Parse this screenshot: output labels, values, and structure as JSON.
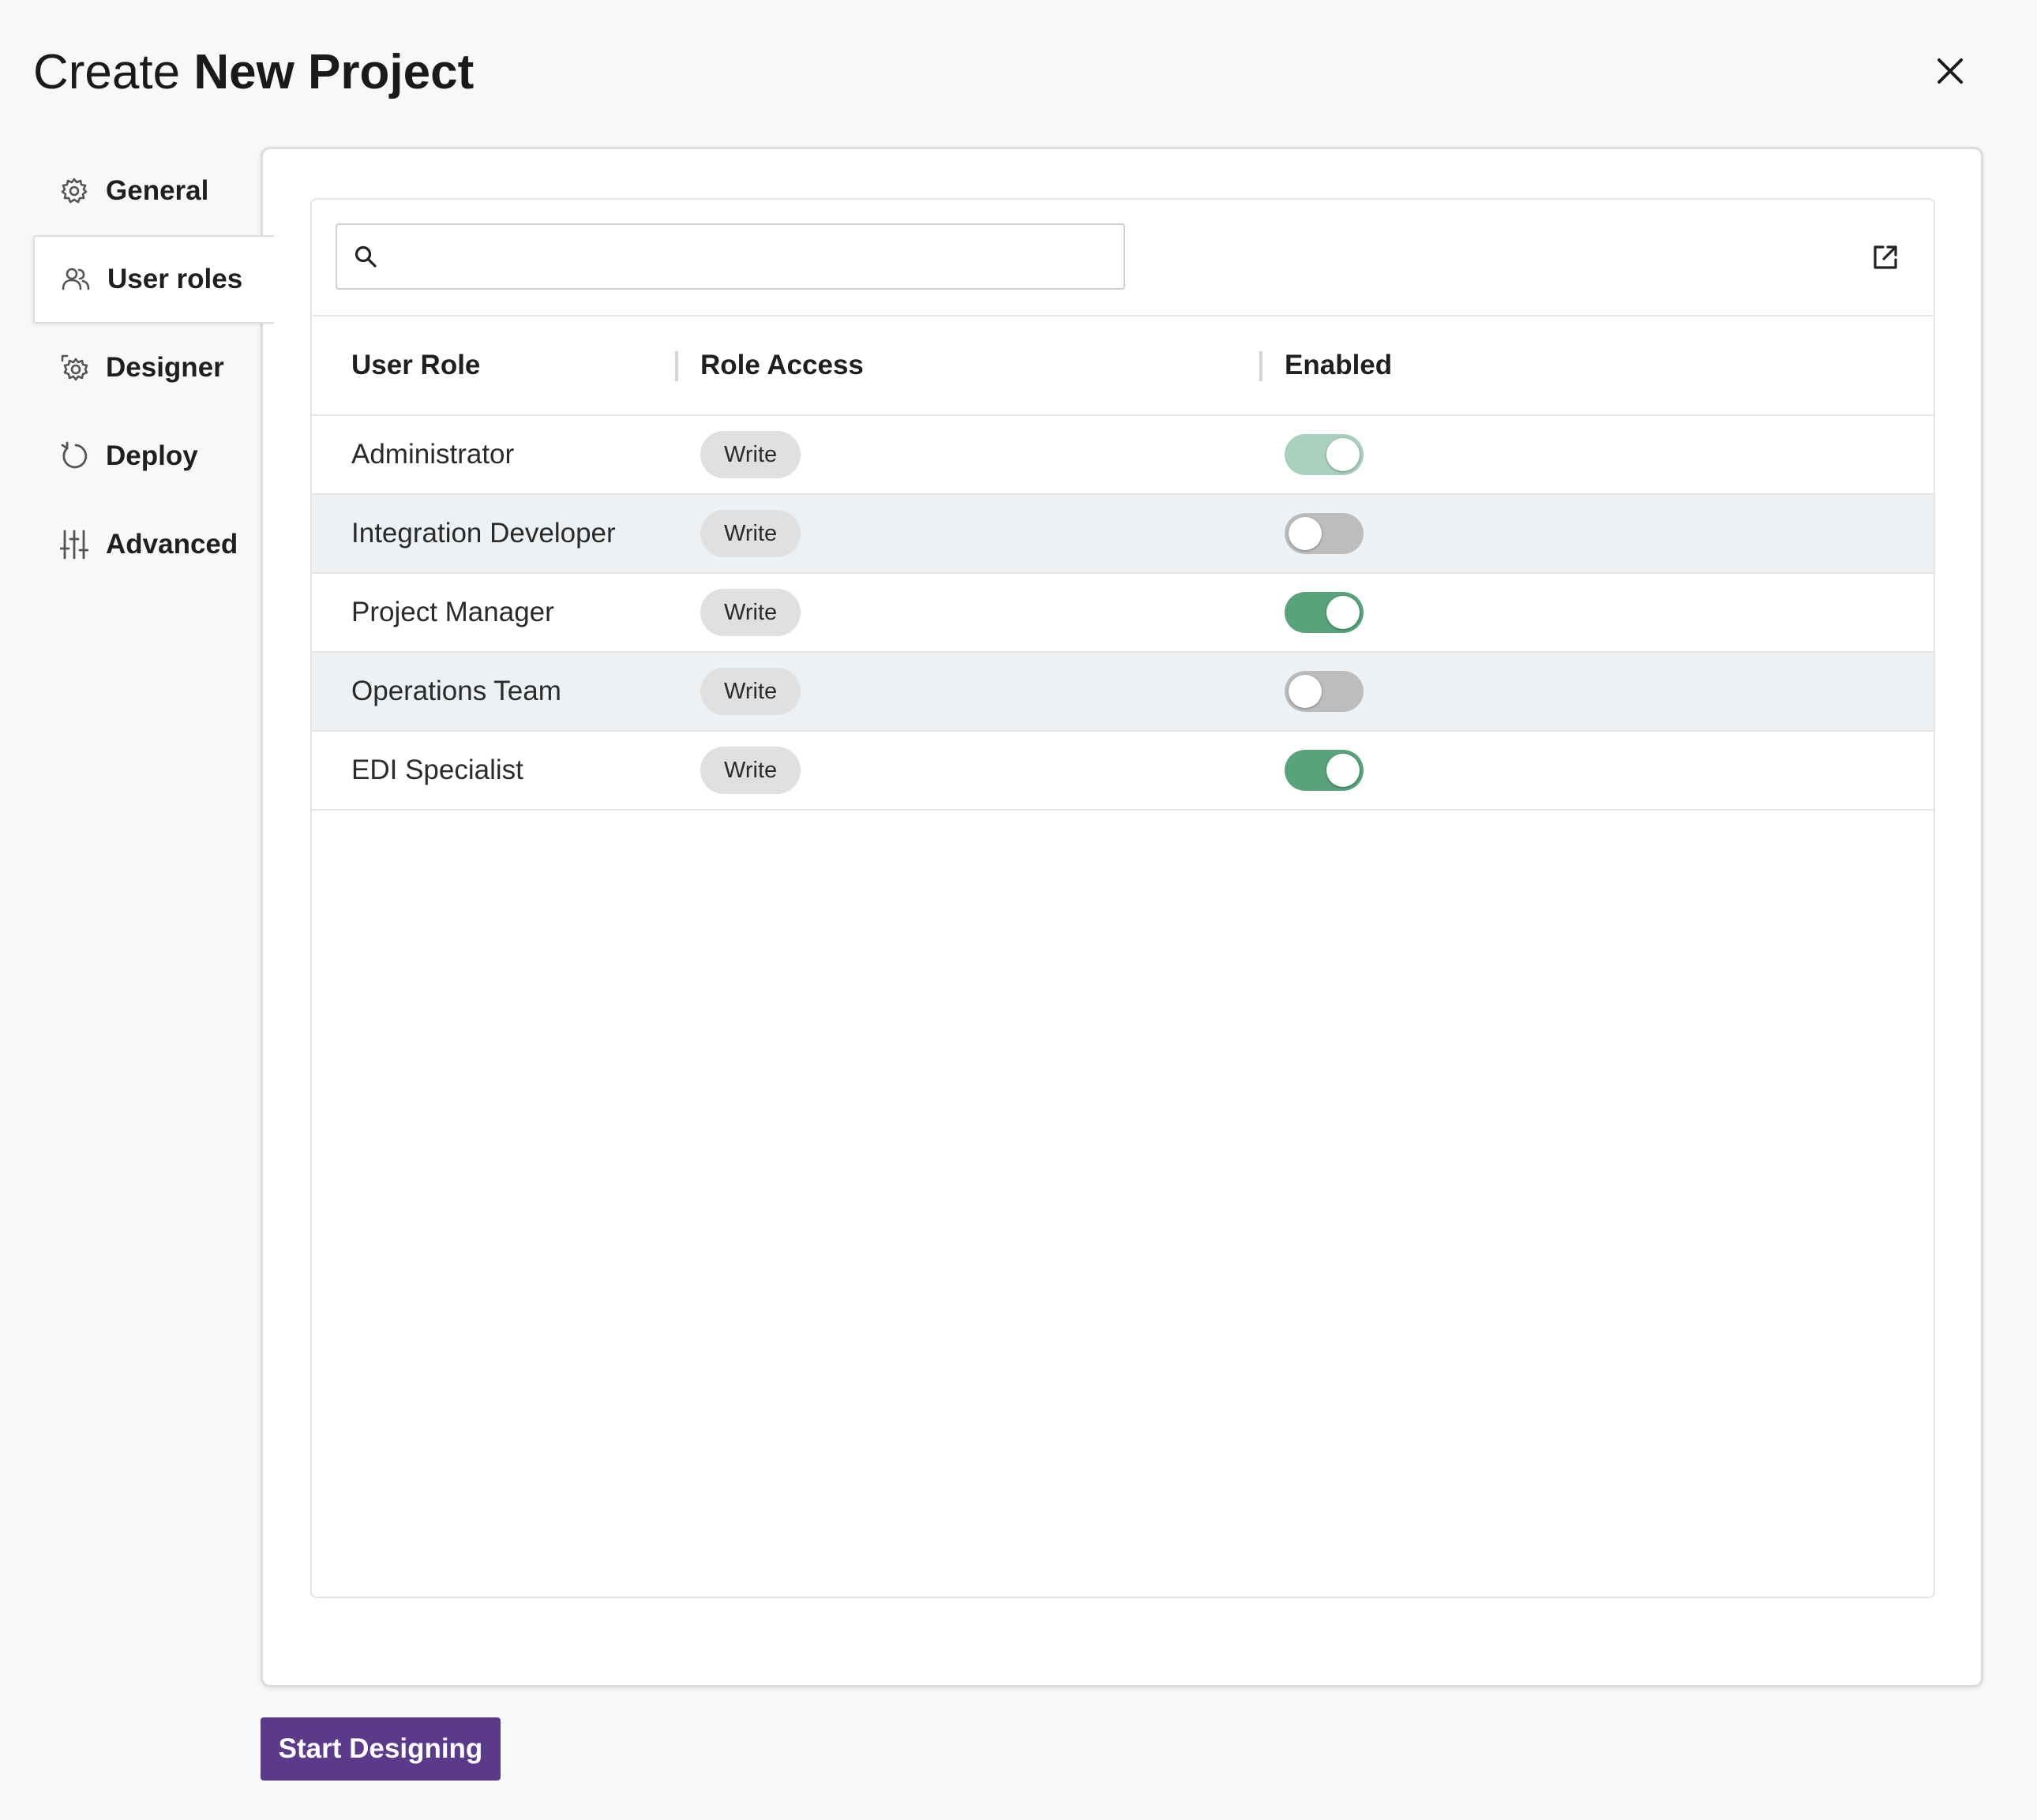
{
  "dialog": {
    "title_prefix": "Create",
    "title_bold": "New Project"
  },
  "sidebar": {
    "items": [
      {
        "label": "General",
        "icon": "gear-icon",
        "active": false
      },
      {
        "label": "User roles",
        "icon": "users-icon",
        "active": true
      },
      {
        "label": "Designer",
        "icon": "designer-gear-icon",
        "active": false
      },
      {
        "label": "Deploy",
        "icon": "deploy-refresh-icon",
        "active": false
      },
      {
        "label": "Advanced",
        "icon": "sliders-icon",
        "active": false
      }
    ]
  },
  "toolbar": {
    "search_value": "",
    "search_icon": "search-icon",
    "export_icon": "open-external-icon"
  },
  "table": {
    "headers": [
      "User Role",
      "Role Access",
      "Enabled"
    ],
    "rows": [
      {
        "role": "Administrator",
        "access": "Write",
        "enabled": true,
        "disabled": true
      },
      {
        "role": "Integration Developer",
        "access": "Write",
        "enabled": false,
        "disabled": false
      },
      {
        "role": "Project Manager",
        "access": "Write",
        "enabled": true,
        "disabled": false
      },
      {
        "role": "Operations Team",
        "access": "Write",
        "enabled": false,
        "disabled": false
      },
      {
        "role": "EDI Specialist",
        "access": "Write",
        "enabled": true,
        "disabled": false
      }
    ]
  },
  "actions": {
    "primary_label": "Start Designing"
  },
  "colors": {
    "primary": "#5b3a8c",
    "toggle_on": "#57a37c",
    "toggle_on_disabled": "#a8d1bd",
    "toggle_off": "#bdbdbd",
    "row_alt": "#edf1f3"
  }
}
